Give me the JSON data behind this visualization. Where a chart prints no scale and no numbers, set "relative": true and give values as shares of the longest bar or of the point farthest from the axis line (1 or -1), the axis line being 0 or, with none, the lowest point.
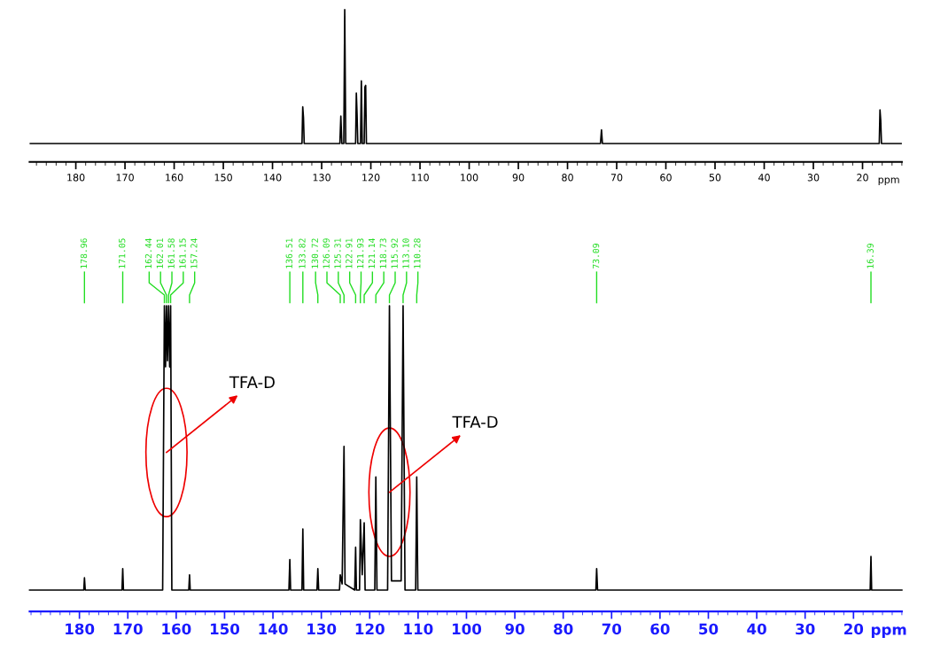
{
  "chart_data": [
    {
      "type": "line",
      "relative": true,
      "xlabel": "ppm",
      "xlim": [
        189.4,
        12
      ],
      "xticks": [
        180,
        170,
        160,
        150,
        140,
        130,
        120,
        110,
        100,
        90,
        80,
        70,
        60,
        50,
        40,
        30,
        20
      ],
      "grid": false,
      "marker": "none",
      "line_style": "solid",
      "x": [
        189.4,
        134.0,
        133.85,
        133.7,
        133.55,
        126.3,
        126.1,
        125.9,
        125.5,
        125.31,
        125.1,
        123.1,
        122.95,
        122.8,
        122.65,
        122.1,
        121.93,
        121.75,
        121.35,
        121.2,
        121.05,
        120.9,
        73.3,
        73.09,
        72.9,
        16.6,
        16.45,
        16.3,
        16.15,
        12
      ],
      "series": [
        {
          "color": "#000000",
          "values": [
            0.12,
            0.12,
            0.36,
            0.29,
            0.12,
            0.12,
            0.3,
            0.12,
            0.12,
            1.0,
            0.12,
            0.12,
            0.45,
            0.31,
            0.12,
            0.12,
            0.53,
            0.12,
            0.12,
            0.49,
            0.5,
            0.12,
            0.12,
            0.21,
            0.12,
            0.12,
            0.34,
            0.27,
            0.12,
            0.12
          ]
        }
      ]
    },
    {
      "type": "line",
      "relative": true,
      "xlabel": "ppm",
      "xlim": [
        190.3,
        10
      ],
      "xticks": [
        180,
        170,
        160,
        150,
        140,
        130,
        120,
        110,
        100,
        90,
        80,
        70,
        60,
        50,
        40,
        30,
        20
      ],
      "grid": false,
      "marker": "none",
      "line_style": "solid",
      "x": [
        190.3,
        179.1,
        178.96,
        178.8,
        171.2,
        171.05,
        170.9,
        162.8,
        162.44,
        162.2,
        162.01,
        161.8,
        161.58,
        161.35,
        161.15,
        160.9,
        157.4,
        157.24,
        157.1,
        136.7,
        136.51,
        136.35,
        134.0,
        133.82,
        133.65,
        130.9,
        130.72,
        130.55,
        126.25,
        126.09,
        125.7,
        125.31,
        125.1,
        123.1,
        122.91,
        122.75,
        122.1,
        121.93,
        121.55,
        121.14,
        120.95,
        118.95,
        118.73,
        118.5,
        116.3,
        115.92,
        115.5,
        113.5,
        113.1,
        112.7,
        110.5,
        110.28,
        110.05,
        73.25,
        73.09,
        72.9,
        16.55,
        16.39,
        16.25,
        10
      ],
      "series": [
        {
          "color": "#000000",
          "values": [
            0.07,
            0.07,
            0.11,
            0.07,
            0.07,
            0.14,
            0.07,
            0.07,
            1,
            0.8,
            1,
            0.82,
            1,
            0.8,
            1,
            0.07,
            0.07,
            0.12,
            0.07,
            0.07,
            0.17,
            0.07,
            0.07,
            0.27,
            0.07,
            0.07,
            0.14,
            0.07,
            0.07,
            0.12,
            0.09,
            0.54,
            0.09,
            0.07,
            0.21,
            0.07,
            0.07,
            0.3,
            0.12,
            0.29,
            0.07,
            0.07,
            0.44,
            0.07,
            0.07,
            1,
            0.1,
            0.1,
            1,
            0.07,
            0.07,
            0.44,
            0.07,
            0.07,
            0.14,
            0.07,
            0.07,
            0.18,
            0.07,
            0.07
          ]
        }
      ],
      "annotations": [
        {
          "text": "178.96",
          "x": 178.96
        },
        {
          "text": "171.05",
          "x": 171.05
        },
        {
          "text": "162.44",
          "x": 162.44
        },
        {
          "text": "162.01",
          "x": 162.01
        },
        {
          "text": "161.58",
          "x": 161.58
        },
        {
          "text": "161.15",
          "x": 161.15
        },
        {
          "text": "157.24",
          "x": 157.24
        },
        {
          "text": "136.51",
          "x": 136.51
        },
        {
          "text": "133.82",
          "x": 133.82
        },
        {
          "text": "130.72",
          "x": 130.72
        },
        {
          "text": "126.09",
          "x": 126.09
        },
        {
          "text": "125.31",
          "x": 125.31
        },
        {
          "text": "122.91",
          "x": 122.91
        },
        {
          "text": "121.93",
          "x": 121.93
        },
        {
          "text": "121.14",
          "x": 121.14
        },
        {
          "text": "118.73",
          "x": 118.73
        },
        {
          "text": "115.92",
          "x": 115.92
        },
        {
          "text": "113.10",
          "x": 113.1
        },
        {
          "text": "110.28",
          "x": 110.28
        },
        {
          "text": "73.09",
          "x": 73.09
        },
        {
          "text": "16.39",
          "x": 16.39
        },
        {
          "text": "TFA-D",
          "x": 162.01,
          "y": 0.52
        },
        {
          "text": "TFA-D",
          "x": 115.92,
          "y": 0.39
        }
      ]
    }
  ]
}
